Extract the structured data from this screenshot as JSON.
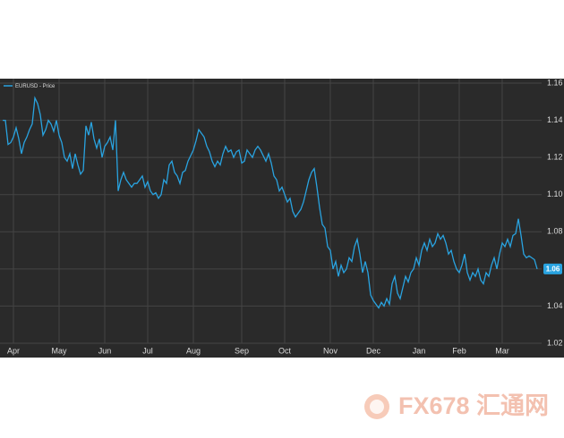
{
  "chart_data": {
    "type": "line",
    "legend": "EURUSD - Price",
    "series": [
      {
        "name": "EURUSD - Price",
        "color": "#29a3e0",
        "values": [
          1.14,
          1.14,
          1.127,
          1.128,
          1.131,
          1.136,
          1.13,
          1.122,
          1.128,
          1.131,
          1.135,
          1.138,
          1.152,
          1.149,
          1.143,
          1.132,
          1.135,
          1.14,
          1.138,
          1.134,
          1.14,
          1.132,
          1.128,
          1.12,
          1.118,
          1.122,
          1.114,
          1.122,
          1.116,
          1.111,
          1.113,
          1.137,
          1.132,
          1.139,
          1.13,
          1.125,
          1.13,
          1.12,
          1.126,
          1.128,
          1.131,
          1.124,
          1.14,
          1.102,
          1.108,
          1.112,
          1.108,
          1.106,
          1.104,
          1.106,
          1.106,
          1.108,
          1.11,
          1.104,
          1.107,
          1.102,
          1.1,
          1.101,
          1.098,
          1.1,
          1.108,
          1.106,
          1.116,
          1.118,
          1.112,
          1.11,
          1.106,
          1.112,
          1.113,
          1.118,
          1.121,
          1.124,
          1.129,
          1.135,
          1.133,
          1.131,
          1.126,
          1.123,
          1.118,
          1.115,
          1.118,
          1.116,
          1.122,
          1.126,
          1.123,
          1.124,
          1.12,
          1.123,
          1.124,
          1.117,
          1.118,
          1.124,
          1.122,
          1.12,
          1.124,
          1.126,
          1.124,
          1.121,
          1.118,
          1.122,
          1.117,
          1.11,
          1.108,
          1.102,
          1.104,
          1.1,
          1.096,
          1.098,
          1.091,
          1.088,
          1.09,
          1.092,
          1.096,
          1.102,
          1.108,
          1.112,
          1.114,
          1.104,
          1.093,
          1.084,
          1.082,
          1.072,
          1.07,
          1.06,
          1.064,
          1.056,
          1.062,
          1.058,
          1.06,
          1.066,
          1.064,
          1.072,
          1.076,
          1.068,
          1.058,
          1.064,
          1.058,
          1.046,
          1.043,
          1.041,
          1.039,
          1.042,
          1.04,
          1.044,
          1.041,
          1.052,
          1.056,
          1.047,
          1.044,
          1.05,
          1.056,
          1.053,
          1.058,
          1.06,
          1.066,
          1.062,
          1.07,
          1.074,
          1.07,
          1.076,
          1.072,
          1.074,
          1.079,
          1.076,
          1.078,
          1.074,
          1.068,
          1.07,
          1.064,
          1.06,
          1.058,
          1.062,
          1.068,
          1.058,
          1.054,
          1.058,
          1.056,
          1.06,
          1.054,
          1.052,
          1.058,
          1.056,
          1.062,
          1.066,
          1.06,
          1.068,
          1.074,
          1.072,
          1.076,
          1.072,
          1.078,
          1.079,
          1.087,
          1.078,
          1.068,
          1.066,
          1.067,
          1.066,
          1.065,
          1.06
        ]
      }
    ],
    "last_value_label": "1.06",
    "xlim": [
      -1,
      200.67
    ],
    "xticks": [
      {
        "value": 4,
        "label": "Apr"
      },
      {
        "value": 21,
        "label": "May"
      },
      {
        "value": 38,
        "label": "Jun"
      },
      {
        "value": 54,
        "label": "Jul"
      },
      {
        "value": 71,
        "label": "Aug"
      },
      {
        "value": 89,
        "label": "Sep"
      },
      {
        "value": 105,
        "label": "Oct"
      },
      {
        "value": 122,
        "label": "Nov"
      },
      {
        "value": 138,
        "label": "Dec"
      },
      {
        "value": 155,
        "label": "Jan"
      },
      {
        "value": 170,
        "label": "Feb"
      },
      {
        "value": 186,
        "label": "Mar"
      }
    ],
    "ylim": [
      1.02,
      1.16
    ],
    "yticks": [
      {
        "value": 1.02,
        "label": "1.02"
      },
      {
        "value": 1.04,
        "label": "1.04"
      },
      {
        "value": 1.06,
        "label": "1.06"
      },
      {
        "value": 1.08,
        "label": "1.08"
      },
      {
        "value": 1.1,
        "label": "1.10"
      },
      {
        "value": 1.12,
        "label": "1.12"
      },
      {
        "value": 1.14,
        "label": "1.14"
      },
      {
        "value": 1.16,
        "label": "1.16"
      }
    ],
    "grid": true,
    "watermark": "FX678 汇通网"
  }
}
